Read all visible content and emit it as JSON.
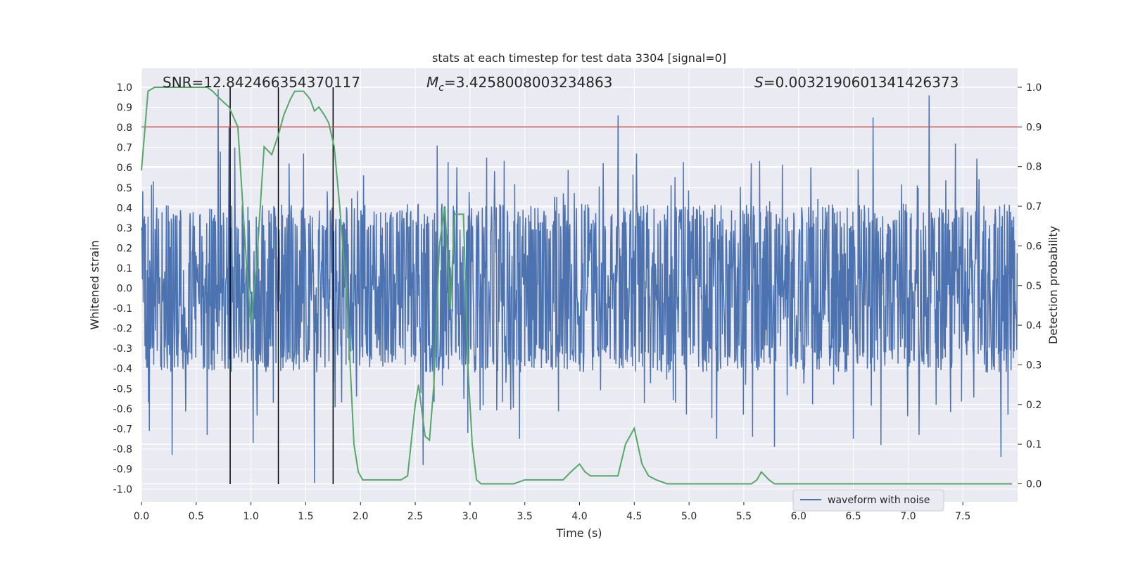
{
  "chart_data": {
    "type": "line",
    "title": "stats at each timestep for test data 3304 [signal=0]",
    "xlabel": "Time (s)",
    "ylabel": "Whitened strain",
    "y2label": "Detection probability",
    "xlim": [
      0,
      8.0
    ],
    "ylim": [
      -1.1,
      1.1
    ],
    "y2lim": [
      -0.05,
      1.05
    ],
    "xticks": [
      "0.0",
      "0.5",
      "1.0",
      "1.5",
      "2.0",
      "2.5",
      "3.0",
      "3.5",
      "4.0",
      "4.5",
      "5.0",
      "5.5",
      "6.0",
      "6.5",
      "7.0",
      "7.5"
    ],
    "yticks": [
      "-1.0",
      "-0.9",
      "-0.8",
      "-0.7",
      "-0.6",
      "-0.5",
      "-0.4",
      "-0.3",
      "-0.2",
      "-0.1",
      "0.0",
      "0.1",
      "0.2",
      "0.3",
      "0.4",
      "0.5",
      "0.6",
      "0.7",
      "0.8",
      "0.9",
      "1.0"
    ],
    "y2ticks": [
      "0.0",
      "0.1",
      "0.2",
      "0.3",
      "0.4",
      "0.5",
      "0.6",
      "0.7",
      "0.8",
      "0.9",
      "1.0"
    ],
    "annotations": {
      "snr_prefix": "SNR=",
      "snr_value": "12.842466354370117",
      "mc_prefix": "M",
      "mc_sub": "c",
      "mc_value": "=3.4258008003234863",
      "s_prefix": "S",
      "s_value": "=0.0032190601341426373"
    },
    "legend": {
      "position": "lower-center-right",
      "label": "waveform with noise"
    },
    "colors": {
      "waveform": "#4c72b0",
      "probability": "#55a868",
      "threshold": "#c44e52",
      "markers": "#000000",
      "plot_bg": "#eaeaf2",
      "grid": "#ffffff"
    },
    "threshold": {
      "axis": "y2",
      "value": 0.9
    },
    "vertical_markers": [
      0.81,
      1.25,
      1.75
    ],
    "waveform": {
      "name": "waveform with noise",
      "dt": 0.004,
      "typical_amplitude": 0.3,
      "spikes": [
        {
          "x": 0.7,
          "y": 0.99
        },
        {
          "x": 0.72,
          "y": 0.68
        },
        {
          "x": 0.8,
          "y": 0.8
        },
        {
          "x": 0.85,
          "y": 0.7
        },
        {
          "x": 0.28,
          "y": -0.83
        },
        {
          "x": 1.02,
          "y": -0.77
        },
        {
          "x": 1.58,
          "y": -0.97
        },
        {
          "x": 1.48,
          "y": 0.67
        },
        {
          "x": 2.57,
          "y": -0.88
        },
        {
          "x": 2.7,
          "y": 0.71
        },
        {
          "x": 2.98,
          "y": -0.72
        },
        {
          "x": 4.35,
          "y": 0.86
        },
        {
          "x": 4.52,
          "y": 0.67
        },
        {
          "x": 3.15,
          "y": 0.65
        },
        {
          "x": 3.45,
          "y": -0.75
        },
        {
          "x": 5.25,
          "y": -0.75
        },
        {
          "x": 5.58,
          "y": -0.74
        },
        {
          "x": 5.78,
          "y": -0.79
        },
        {
          "x": 6.68,
          "y": 0.85
        },
        {
          "x": 6.5,
          "y": -0.75
        },
        {
          "x": 6.75,
          "y": -0.78
        },
        {
          "x": 7.19,
          "y": 0.96
        },
        {
          "x": 7.43,
          "y": 0.72
        },
        {
          "x": 7.85,
          "y": -0.84
        },
        {
          "x": 7.1,
          "y": -0.73
        },
        {
          "x": 0.07,
          "y": -0.71
        },
        {
          "x": 0.6,
          "y": -0.73
        }
      ]
    },
    "probability": {
      "name": "Detection probability",
      "x": [
        0.0,
        0.06,
        0.12,
        0.2,
        0.3,
        0.4,
        0.5,
        0.6,
        0.65,
        0.72,
        0.8,
        0.88,
        0.96,
        1.0,
        1.05,
        1.12,
        1.19,
        1.25,
        1.3,
        1.36,
        1.4,
        1.44,
        1.48,
        1.54,
        1.58,
        1.62,
        1.67,
        1.71,
        1.76,
        1.81,
        1.88,
        1.94,
        1.98,
        2.02,
        2.1,
        2.25,
        2.37,
        2.43,
        2.5,
        2.53,
        2.59,
        2.63,
        2.67,
        2.72,
        2.77,
        2.82,
        2.86,
        2.9,
        2.94,
        2.98,
        3.02,
        3.06,
        3.1,
        3.2,
        3.3,
        3.4,
        3.5,
        3.6,
        3.75,
        3.8,
        3.85,
        3.92,
        4.0,
        4.05,
        4.1,
        4.15,
        4.2,
        4.25,
        4.3,
        4.35,
        4.42,
        4.5,
        4.57,
        4.63,
        4.7,
        4.8,
        4.9,
        5.0,
        5.1,
        5.2,
        5.3,
        5.4,
        5.5,
        5.57,
        5.62,
        5.66,
        5.73,
        5.78,
        5.85,
        5.95,
        6.0,
        6.1,
        6.2,
        6.3,
        6.4,
        6.5,
        6.6,
        6.7,
        6.8,
        6.9,
        7.0,
        7.2,
        7.4,
        7.6,
        7.8,
        7.95
      ],
      "y": [
        0.79,
        0.99,
        1.0,
        1.0,
        1.0,
        1.0,
        1.0,
        1.0,
        0.99,
        0.97,
        0.95,
        0.9,
        0.55,
        0.4,
        0.55,
        0.85,
        0.83,
        0.88,
        0.93,
        0.97,
        0.99,
        0.99,
        0.99,
        0.97,
        0.94,
        0.95,
        0.93,
        0.91,
        0.85,
        0.7,
        0.45,
        0.1,
        0.03,
        0.01,
        0.01,
        0.01,
        0.01,
        0.02,
        0.2,
        0.25,
        0.12,
        0.11,
        0.25,
        0.6,
        0.7,
        0.44,
        0.68,
        0.68,
        0.68,
        0.3,
        0.1,
        0.01,
        0.0,
        0.0,
        0.0,
        0.0,
        0.01,
        0.01,
        0.01,
        0.01,
        0.01,
        0.03,
        0.05,
        0.03,
        0.02,
        0.02,
        0.02,
        0.02,
        0.02,
        0.02,
        0.1,
        0.14,
        0.05,
        0.02,
        0.01,
        0.0,
        0.0,
        0.0,
        0.0,
        0.0,
        0.0,
        0.0,
        0.0,
        0.0,
        0.01,
        0.03,
        0.01,
        0.0,
        0.0,
        0.0,
        0.0,
        0.0,
        0.0,
        0.0,
        0.0,
        0.0,
        0.0,
        0.0,
        0.0,
        0.0,
        0.0,
        0.0,
        0.0,
        0.0,
        0.0,
        0.0
      ]
    }
  }
}
